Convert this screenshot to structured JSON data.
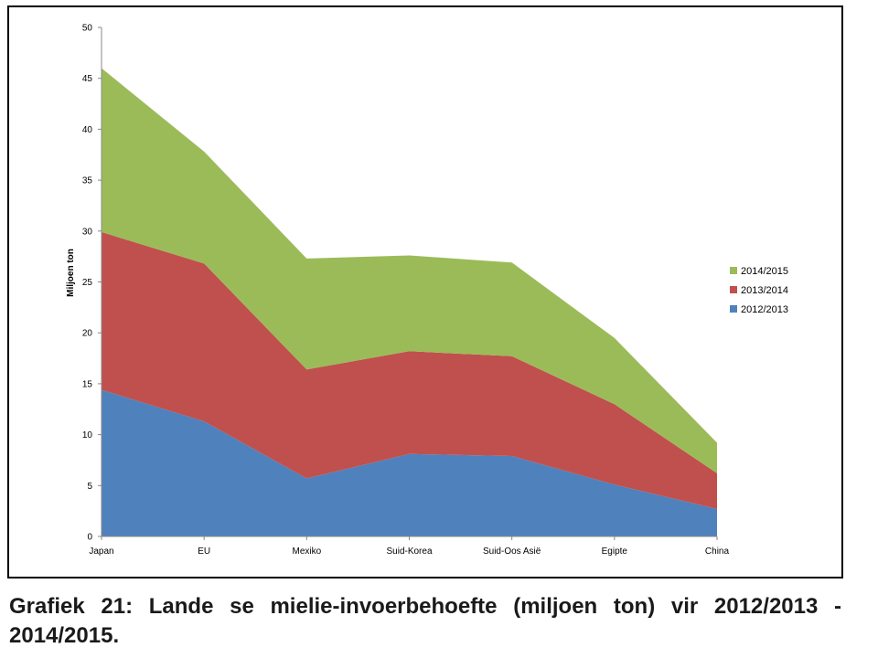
{
  "caption": "Grafiek 21: Lande se mielie-invoerbehoefte (miljoen ton) vir 2012/2013 - 2014/2015.",
  "chart_data": {
    "type": "area",
    "stacked": true,
    "title": "",
    "xlabel": "",
    "ylabel": "Miljoen ton",
    "categories": [
      "Japan",
      "EU",
      "Mexiko",
      "Suid-Korea",
      "Suid-Oos Asië",
      "Egipte",
      "China"
    ],
    "ylim": [
      0,
      50
    ],
    "yticks": [
      0,
      5,
      10,
      15,
      20,
      25,
      30,
      35,
      40,
      45,
      50
    ],
    "grid": false,
    "legend_position": "right",
    "series": [
      {
        "name": "2012/2013",
        "color": "#4f81bd",
        "values": [
          14.4,
          11.3,
          5.7,
          8.1,
          7.9,
          5.1,
          2.7
        ]
      },
      {
        "name": "2013/2014",
        "color": "#c0504d",
        "values": [
          15.5,
          15.5,
          10.7,
          10.1,
          9.8,
          7.9,
          3.5
        ]
      },
      {
        "name": "2014/2015",
        "color": "#9bbb59",
        "values": [
          16.1,
          11.0,
          10.9,
          9.4,
          9.2,
          6.5,
          3.0
        ]
      }
    ],
    "legend_order": [
      "2014/2015",
      "2013/2014",
      "2012/2013"
    ]
  }
}
